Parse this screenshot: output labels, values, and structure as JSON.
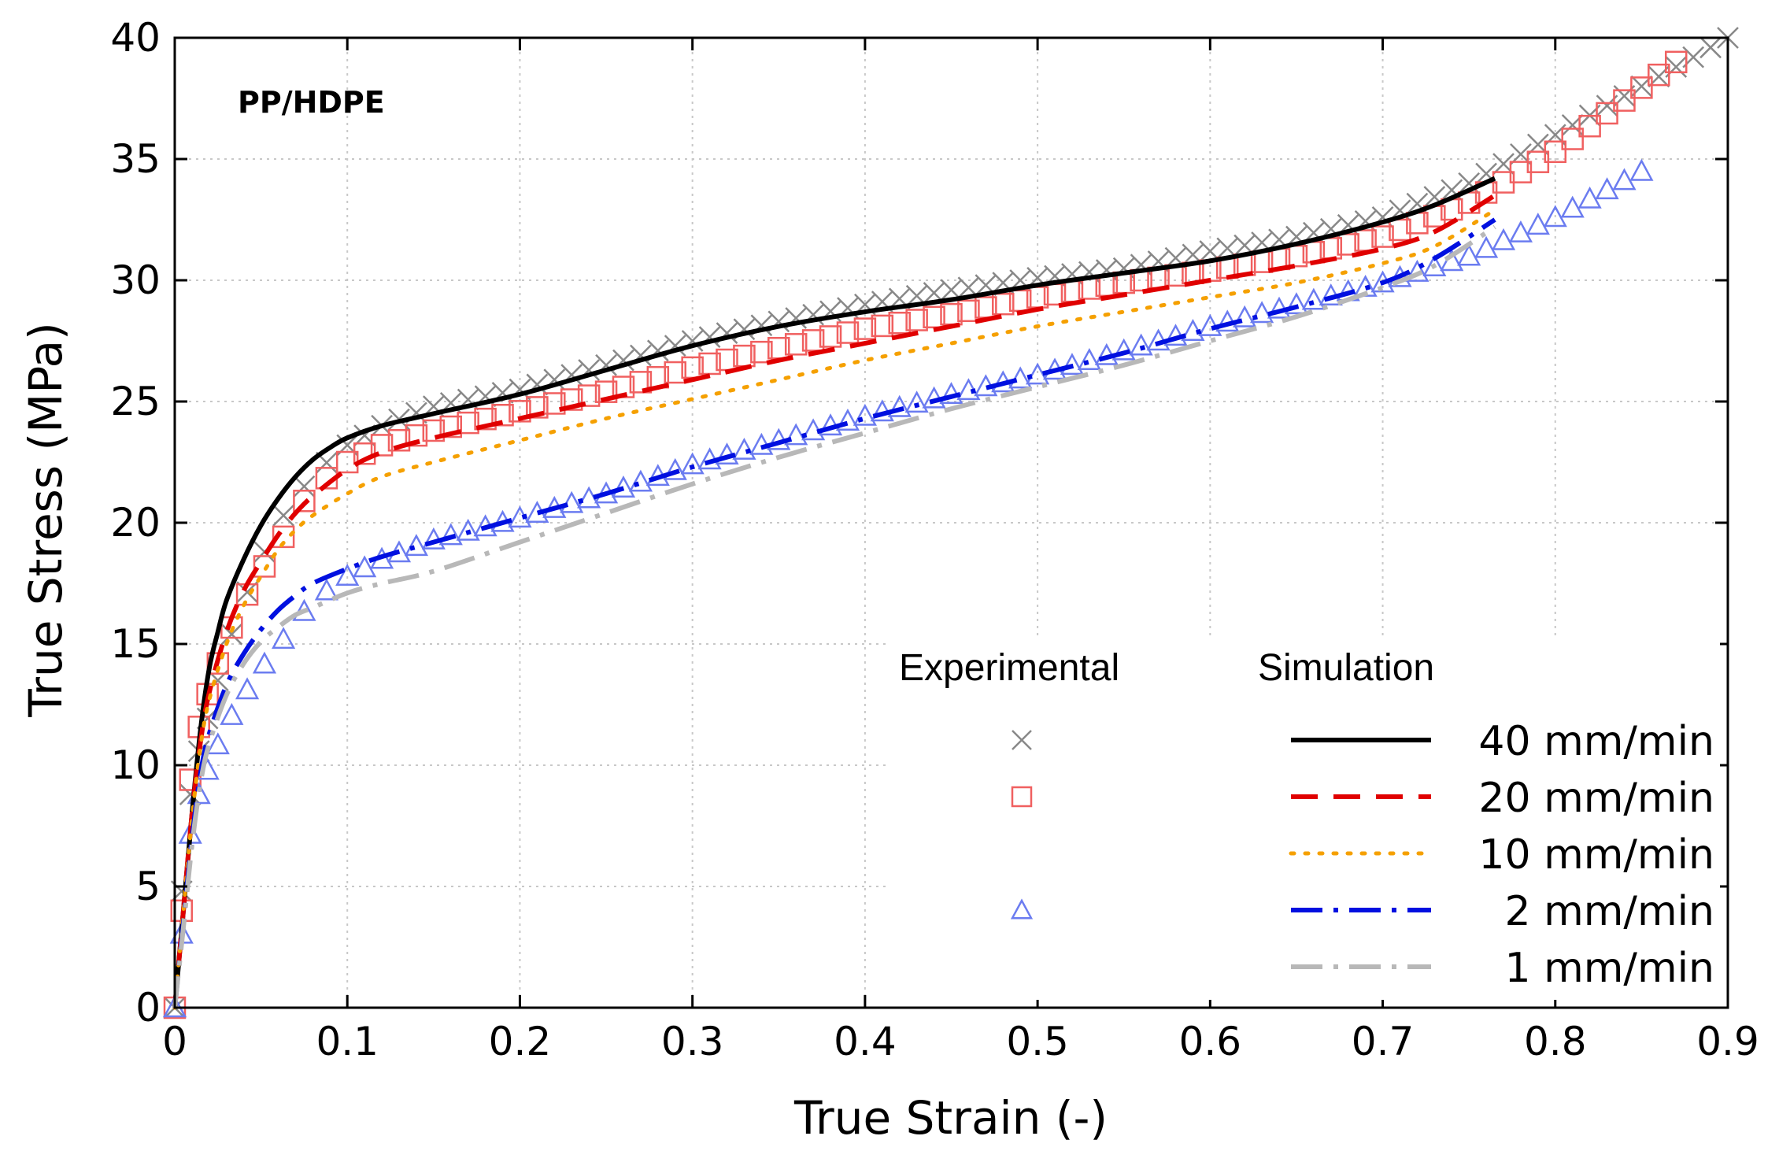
{
  "chart_data": {
    "type": "line",
    "annotation": "PP/HDPE",
    "xlabel": "True Strain (-)",
    "ylabel": "True Stress (MPa)",
    "xlim": [
      0,
      0.9
    ],
    "ylim": [
      0,
      40
    ],
    "x_ticks": [
      0,
      0.1,
      0.2,
      0.3,
      0.4,
      0.5,
      0.6,
      0.7,
      0.8,
      0.9
    ],
    "x_tick_labels": [
      "0",
      "0.1",
      "0.2",
      "0.3",
      "0.4",
      "0.5",
      "0.6",
      "0.7",
      "0.8",
      "0.9"
    ],
    "y_ticks": [
      0,
      5,
      10,
      15,
      20,
      25,
      30,
      35,
      40
    ],
    "y_tick_labels": [
      "0",
      "5",
      "10",
      "15",
      "20",
      "25",
      "30",
      "35",
      "40"
    ],
    "grid": true,
    "legend": {
      "placement": "bottom-right",
      "experimental_header": "Experimental",
      "simulation_header": "Simulation",
      "entries": [
        "40 mm/min",
        "20 mm/min",
        "10 mm/min",
        "2 mm/min",
        "1 mm/min"
      ]
    },
    "experimental": [
      {
        "name": "40 mm/min",
        "marker": "cross",
        "color": "#888888",
        "x": [
          0,
          0.005,
          0.01,
          0.02,
          0.03,
          0.04,
          0.05,
          0.06,
          0.07,
          0.08,
          0.1,
          0.12,
          0.15,
          0.2,
          0.25,
          0.3,
          0.35,
          0.4,
          0.45,
          0.5,
          0.55,
          0.6,
          0.65,
          0.7,
          0.75,
          0.8,
          0.85,
          0.9
        ],
        "y": [
          0,
          6,
          9.5,
          12.2,
          14.8,
          16.8,
          18.5,
          20,
          21,
          22,
          23.2,
          24,
          24.8,
          25.5,
          26.5,
          27.5,
          28.3,
          29,
          29.6,
          30.1,
          30.5,
          31.2,
          31.8,
          32.6,
          34,
          36,
          38,
          40
        ]
      },
      {
        "name": "20 mm/min",
        "marker": "square",
        "color": "#f06060",
        "x": [
          0,
          0.005,
          0.01,
          0.02,
          0.03,
          0.04,
          0.05,
          0.06,
          0.07,
          0.08,
          0.1,
          0.12,
          0.15,
          0.2,
          0.25,
          0.3,
          0.35,
          0.4,
          0.45,
          0.5,
          0.55,
          0.6,
          0.65,
          0.7,
          0.75,
          0.8,
          0.87
        ],
        "y": [
          0,
          5,
          10.5,
          13.2,
          15.2,
          16.8,
          18,
          19,
          20.4,
          21.4,
          22.5,
          23.2,
          23.8,
          24.6,
          25.4,
          26.4,
          27.2,
          28,
          28.6,
          29.3,
          29.9,
          30.4,
          31,
          31.8,
          33.2,
          35.3,
          39
        ]
      },
      {
        "name": "2 mm/min",
        "marker": "triangle",
        "color": "#6b7cf0",
        "x": [
          0,
          0.005,
          0.01,
          0.02,
          0.03,
          0.04,
          0.05,
          0.06,
          0.07,
          0.08,
          0.1,
          0.12,
          0.15,
          0.2,
          0.25,
          0.3,
          0.35,
          0.4,
          0.45,
          0.5,
          0.55,
          0.6,
          0.65,
          0.7,
          0.75,
          0.8,
          0.85
        ],
        "y": [
          0,
          3.8,
          8,
          10,
          11.7,
          12.9,
          14,
          14.9,
          15.9,
          16.8,
          17.8,
          18.5,
          19.3,
          20.2,
          21.2,
          22.4,
          23.4,
          24.4,
          25.3,
          26.1,
          27.1,
          28.1,
          29,
          29.9,
          31,
          32.6,
          34.5
        ]
      }
    ],
    "simulation": [
      {
        "name": "40 mm/min",
        "style": "solid",
        "color": "#000000",
        "x": [
          0,
          0.005,
          0.01,
          0.015,
          0.02,
          0.025,
          0.03,
          0.04,
          0.05,
          0.06,
          0.07,
          0.08,
          0.09,
          0.1,
          0.12,
          0.15,
          0.2,
          0.25,
          0.3,
          0.35,
          0.4,
          0.45,
          0.5,
          0.55,
          0.6,
          0.65,
          0.7,
          0.73,
          0.765
        ],
        "y": [
          0,
          4,
          8,
          11.5,
          14,
          15.5,
          16.8,
          18.5,
          19.9,
          21,
          21.9,
          22.6,
          23.1,
          23.5,
          24,
          24.5,
          25.3,
          26.3,
          27.3,
          28.1,
          28.7,
          29.2,
          29.8,
          30.3,
          30.8,
          31.5,
          32.4,
          33.1,
          34.2
        ]
      },
      {
        "name": "20 mm/min",
        "style": "dashed",
        "color": "#e00000",
        "x": [
          0,
          0.005,
          0.01,
          0.015,
          0.02,
          0.03,
          0.04,
          0.05,
          0.06,
          0.07,
          0.08,
          0.1,
          0.12,
          0.15,
          0.2,
          0.25,
          0.3,
          0.35,
          0.4,
          0.45,
          0.5,
          0.55,
          0.6,
          0.65,
          0.7,
          0.73,
          0.765
        ],
        "y": [
          0,
          4,
          8,
          11,
          13,
          15.5,
          17.2,
          18.4,
          19.5,
          20.4,
          21.1,
          22.2,
          22.9,
          23.5,
          24.3,
          25.1,
          25.9,
          26.7,
          27.4,
          28.1,
          28.8,
          29.4,
          30,
          30.6,
          31.3,
          32,
          33.5
        ]
      },
      {
        "name": "10 mm/min",
        "style": "dotted",
        "color": "#f5a000",
        "x": [
          0,
          0.005,
          0.01,
          0.015,
          0.02,
          0.03,
          0.04,
          0.05,
          0.06,
          0.07,
          0.08,
          0.1,
          0.12,
          0.15,
          0.2,
          0.25,
          0.3,
          0.35,
          0.4,
          0.45,
          0.5,
          0.55,
          0.6,
          0.65,
          0.7,
          0.73,
          0.765
        ],
        "y": [
          0,
          4,
          7.8,
          10.8,
          12.7,
          15,
          16.6,
          17.8,
          18.9,
          19.7,
          20.3,
          21.2,
          21.9,
          22.5,
          23.4,
          24.3,
          25.1,
          25.9,
          26.7,
          27.4,
          28.1,
          28.7,
          29.3,
          29.9,
          30.7,
          31.4,
          32.9
        ]
      },
      {
        "name": "2 mm/min",
        "style": "dashdot",
        "color": "#0010e0",
        "x": [
          0,
          0.005,
          0.01,
          0.015,
          0.02,
          0.03,
          0.04,
          0.05,
          0.06,
          0.07,
          0.08,
          0.1,
          0.12,
          0.15,
          0.2,
          0.25,
          0.3,
          0.35,
          0.4,
          0.45,
          0.5,
          0.55,
          0.6,
          0.65,
          0.7,
          0.73,
          0.765
        ],
        "y": [
          0,
          3.5,
          7,
          9.7,
          11.3,
          13.3,
          14.6,
          15.6,
          16.4,
          17,
          17.5,
          18.1,
          18.6,
          19.2,
          20.2,
          21.2,
          22.3,
          23.3,
          24.3,
          25.2,
          26.1,
          27,
          28,
          28.9,
          29.9,
          30.9,
          32.5
        ]
      },
      {
        "name": "1 mm/min",
        "style": "dashdot",
        "color": "#b8b8b8",
        "x": [
          0,
          0.005,
          0.01,
          0.015,
          0.02,
          0.03,
          0.04,
          0.05,
          0.06,
          0.07,
          0.08,
          0.1,
          0.12,
          0.15,
          0.2,
          0.25,
          0.3,
          0.35,
          0.4,
          0.45,
          0.5,
          0.55,
          0.6,
          0.65,
          0.7,
          0.73,
          0.765
        ],
        "y": [
          0,
          3.3,
          6.7,
          9.3,
          10.9,
          12.9,
          14.2,
          15.1,
          15.7,
          16.2,
          16.5,
          17.1,
          17.5,
          18,
          19.2,
          20.4,
          21.6,
          22.7,
          23.7,
          24.7,
          25.6,
          26.5,
          27.5,
          28.5,
          29.7,
          30.6,
          32.2
        ]
      }
    ]
  }
}
